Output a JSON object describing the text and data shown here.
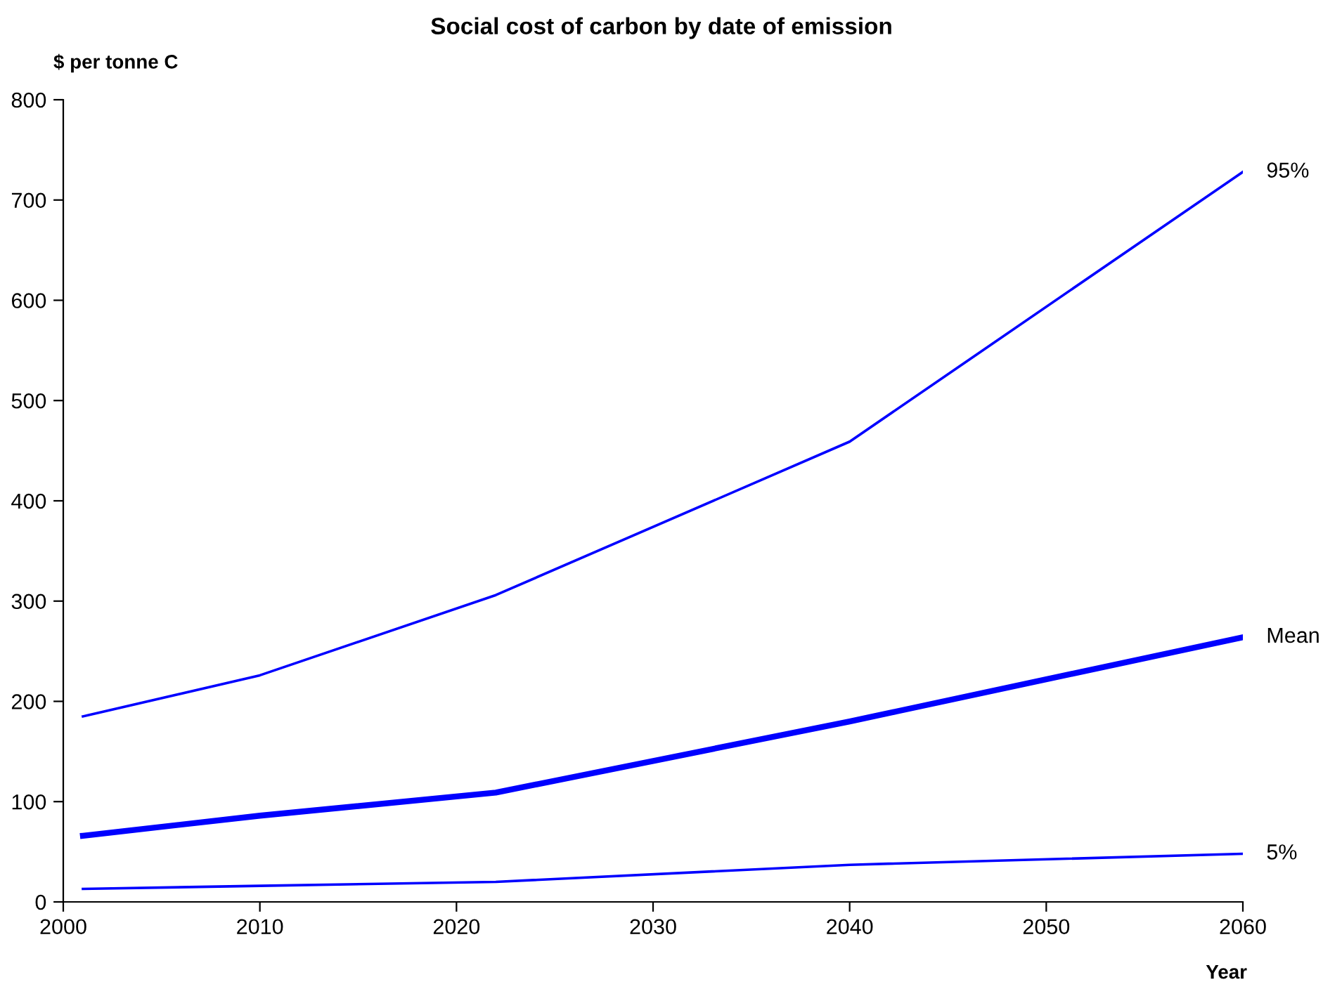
{
  "chart_data": {
    "type": "line",
    "title": "Social cost of carbon by date of emission",
    "ylabel": "$ per tonne C",
    "xlabel": "Year",
    "x": [
      2001,
      2010,
      2022,
      2040,
      2060
    ],
    "series": [
      {
        "name": "95%",
        "color": "#0000ff",
        "values": [
          185,
          226,
          306,
          459,
          728
        ]
      },
      {
        "name": "Mean",
        "color": "#0000ff",
        "values": [
          66,
          86,
          109,
          180,
          264
        ]
      },
      {
        "name": "5%",
        "color": "#0000ff",
        "values": [
          13,
          16,
          20,
          37,
          48
        ]
      }
    ],
    "xlim": [
      2000,
      2060
    ],
    "xticks": [
      2000,
      2010,
      2020,
      2030,
      2040,
      2050,
      2060
    ],
    "ylim": [
      0,
      800
    ],
    "yticks": [
      0,
      100,
      200,
      300,
      400,
      500,
      600,
      700,
      800
    ],
    "grid": false,
    "legend": false,
    "marker": "none",
    "line_style": "solid"
  }
}
